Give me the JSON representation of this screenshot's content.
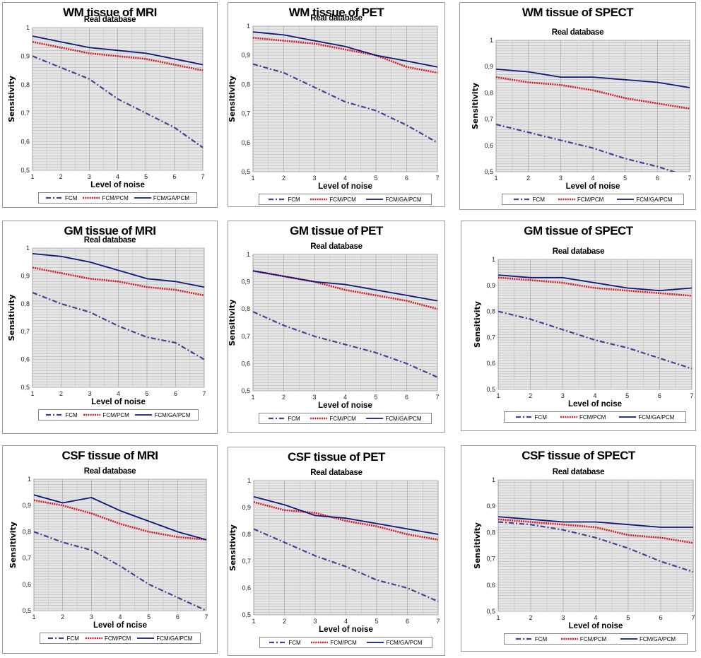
{
  "colors": {
    "FCM": "#4b3f8f",
    "FCM/PCM": "#d0202a",
    "FCM/GA/PCM": "#10167a",
    "plot_bg": "#e6e6e6",
    "grid": "#b5b5b5"
  },
  "chart_data": [
    {
      "type": "line",
      "title": "WM tissue of MRI",
      "subtitle": "Real database",
      "xlabel": "Level of noise",
      "ylabel": "Sensitivity",
      "x": [
        1,
        2,
        3,
        4,
        5,
        6,
        7
      ],
      "xticks": [
        "1",
        "2",
        "3",
        "4",
        "5",
        "6",
        "7"
      ],
      "yticks": [
        "0,5",
        "0,6",
        "0,7",
        "0,8",
        "0,9",
        "1"
      ],
      "ylim": [
        0.5,
        1
      ],
      "grid": true,
      "legend_position": "bottom",
      "series": [
        {
          "name": "FCM",
          "values": [
            0.9,
            0.86,
            0.82,
            0.75,
            0.7,
            0.65,
            0.58
          ]
        },
        {
          "name": "FCM/PCM",
          "values": [
            0.95,
            0.93,
            0.91,
            0.9,
            0.89,
            0.87,
            0.85
          ]
        },
        {
          "name": "FCM/GA/PCM",
          "values": [
            0.97,
            0.95,
            0.93,
            0.92,
            0.91,
            0.89,
            0.87
          ]
        }
      ]
    },
    {
      "type": "line",
      "title": "WM tissue of PET",
      "subtitle": "Real database",
      "xlabel": "Level of noise",
      "ylabel": "Sensitivity",
      "x": [
        1,
        2,
        3,
        4,
        5,
        6,
        7
      ],
      "xticks": [
        "1",
        "2",
        "3",
        "4",
        "5",
        "6",
        "7"
      ],
      "yticks": [
        "0,5",
        "0,6",
        "0,7",
        "0,8",
        "0,9",
        "1"
      ],
      "ylim": [
        0.5,
        1
      ],
      "grid": true,
      "legend_position": "bottom",
      "series": [
        {
          "name": "FCM",
          "values": [
            0.87,
            0.84,
            0.79,
            0.74,
            0.71,
            0.66,
            0.6
          ]
        },
        {
          "name": "FCM/PCM",
          "values": [
            0.96,
            0.95,
            0.94,
            0.92,
            0.9,
            0.86,
            0.84
          ]
        },
        {
          "name": "FCM/GA/PCM",
          "values": [
            0.98,
            0.97,
            0.95,
            0.93,
            0.9,
            0.88,
            0.86
          ]
        }
      ]
    },
    {
      "type": "line",
      "title": "WM tissue of SPECT",
      "subtitle": "Real database",
      "xlabel": "Level of noise",
      "ylabel": "Sensitivity",
      "x": [
        1,
        2,
        3,
        4,
        5,
        6,
        7
      ],
      "xticks": [
        "1",
        "2",
        "3",
        "4",
        "5",
        "6",
        "7"
      ],
      "yticks": [
        "0,5",
        "0,6",
        "0,7",
        "0,8",
        "0,9",
        "1"
      ],
      "ylim": [
        0.5,
        1
      ],
      "grid": true,
      "legend_position": "bottom",
      "series": [
        {
          "name": "FCM",
          "values": [
            0.68,
            0.65,
            0.62,
            0.59,
            0.55,
            0.52,
            0.48
          ]
        },
        {
          "name": "FCM/PCM",
          "values": [
            0.86,
            0.84,
            0.83,
            0.81,
            0.78,
            0.76,
            0.74
          ]
        },
        {
          "name": "FCM/GA/PCM",
          "values": [
            0.89,
            0.88,
            0.86,
            0.86,
            0.85,
            0.84,
            0.82
          ]
        }
      ]
    },
    {
      "type": "line",
      "title": "GM tissue of MRI",
      "subtitle": "Real database",
      "xlabel": "Level of noise",
      "ylabel": "Sensitivity",
      "x": [
        1,
        2,
        3,
        4,
        5,
        6,
        7
      ],
      "xticks": [
        "1",
        "2",
        "3",
        "4",
        "5",
        "6",
        "7"
      ],
      "yticks": [
        "0,5",
        "0,6",
        "0,7",
        "0,8",
        "0,9",
        "1"
      ],
      "ylim": [
        0.5,
        1
      ],
      "grid": true,
      "legend_position": "bottom",
      "series": [
        {
          "name": "FCM",
          "values": [
            0.84,
            0.8,
            0.77,
            0.72,
            0.68,
            0.66,
            0.6
          ]
        },
        {
          "name": "FCM/PCM",
          "values": [
            0.93,
            0.91,
            0.89,
            0.88,
            0.86,
            0.85,
            0.83
          ]
        },
        {
          "name": "FCM/GA/PCM",
          "values": [
            0.98,
            0.97,
            0.95,
            0.92,
            0.89,
            0.88,
            0.86
          ]
        }
      ]
    },
    {
      "type": "line",
      "title": "GM tissue of PET",
      "subtitle": "Real database",
      "xlabel": "Level of noise",
      "ylabel": "Sensitivity",
      "x": [
        1,
        2,
        3,
        4,
        5,
        6,
        7
      ],
      "xticks": [
        "1",
        "2",
        "3",
        "4",
        "5",
        "6",
        "7"
      ],
      "yticks": [
        "0,5",
        "0,6",
        "0,7",
        "0,8",
        "0,9",
        "1"
      ],
      "ylim": [
        0.5,
        1
      ],
      "grid": true,
      "legend_position": "bottom",
      "series": [
        {
          "name": "FCM",
          "values": [
            0.79,
            0.74,
            0.7,
            0.67,
            0.64,
            0.6,
            0.55
          ]
        },
        {
          "name": "FCM/PCM",
          "values": [
            0.94,
            0.92,
            0.9,
            0.87,
            0.85,
            0.83,
            0.8
          ]
        },
        {
          "name": "FCM/GA/PCM",
          "values": [
            0.94,
            0.92,
            0.9,
            0.89,
            0.87,
            0.85,
            0.83
          ]
        }
      ]
    },
    {
      "type": "line",
      "title": "GM tissue of SPECT",
      "subtitle": "Real database",
      "xlabel": "Level of ncise",
      "ylabel": "Sensitivity",
      "x": [
        1,
        2,
        3,
        4,
        5,
        6,
        7
      ],
      "xticks": [
        "1",
        "2",
        "3",
        "4",
        "5",
        "6",
        "7"
      ],
      "yticks": [
        "0,5",
        "0,6",
        "0,7",
        "0,8",
        "0,9",
        "1"
      ],
      "ylim": [
        0.5,
        1
      ],
      "grid": true,
      "legend_position": "bottom",
      "series": [
        {
          "name": "FCM",
          "values": [
            0.8,
            0.77,
            0.73,
            0.69,
            0.66,
            0.62,
            0.58
          ]
        },
        {
          "name": "FCM/PCM",
          "values": [
            0.93,
            0.92,
            0.91,
            0.89,
            0.88,
            0.87,
            0.86
          ]
        },
        {
          "name": "FCM/GA/PCM",
          "values": [
            0.94,
            0.93,
            0.93,
            0.91,
            0.89,
            0.88,
            0.89
          ]
        }
      ]
    },
    {
      "type": "line",
      "title": "CSF tissue of MRI",
      "subtitle": "Real database",
      "xlabel": "Level of ncise",
      "ylabel": "Sensitivity",
      "x": [
        1,
        2,
        3,
        4,
        5,
        6,
        7
      ],
      "xticks": [
        "1",
        "2",
        "3",
        "4",
        "5",
        "6",
        "7"
      ],
      "yticks": [
        "0,5",
        "0,6",
        "0,7",
        "0,8",
        "0,9",
        "1"
      ],
      "ylim": [
        0.5,
        1
      ],
      "grid": true,
      "legend_position": "bottom",
      "series": [
        {
          "name": "FCM",
          "values": [
            0.8,
            0.76,
            0.73,
            0.67,
            0.6,
            0.55,
            0.5
          ]
        },
        {
          "name": "FCM/PCM",
          "values": [
            0.92,
            0.9,
            0.87,
            0.83,
            0.8,
            0.78,
            0.77
          ]
        },
        {
          "name": "FCM/GA/PCM",
          "values": [
            0.94,
            0.91,
            0.93,
            0.88,
            0.84,
            0.8,
            0.77
          ]
        }
      ]
    },
    {
      "type": "line",
      "title": "CSF tissue of PET",
      "subtitle": "Real database",
      "xlabel": "Level of noise",
      "ylabel": "Sensitivity",
      "x": [
        1,
        2,
        3,
        4,
        5,
        6,
        7
      ],
      "xticks": [
        "1",
        "2",
        "3",
        "4",
        "5",
        "6",
        "7"
      ],
      "yticks": [
        "0,5",
        "0,6",
        "0,7",
        "0,8",
        "0,9",
        "1"
      ],
      "ylim": [
        0.5,
        1
      ],
      "grid": true,
      "legend_position": "bottom",
      "series": [
        {
          "name": "FCM",
          "values": [
            0.82,
            0.77,
            0.72,
            0.68,
            0.63,
            0.6,
            0.55
          ]
        },
        {
          "name": "FCM/PCM",
          "values": [
            0.92,
            0.89,
            0.88,
            0.85,
            0.83,
            0.8,
            0.78
          ]
        },
        {
          "name": "FCM/GA/PCM",
          "values": [
            0.94,
            0.91,
            0.87,
            0.86,
            0.84,
            0.82,
            0.8
          ]
        }
      ]
    },
    {
      "type": "line",
      "title": "CSF tissue of SPECT",
      "subtitle": "Real database",
      "xlabel": "Level of noise",
      "ylabel": "Sensitivity",
      "x": [
        1,
        2,
        3,
        4,
        5,
        6,
        7
      ],
      "xticks": [
        "1",
        "2",
        "3",
        "4",
        "5",
        "6",
        "7"
      ],
      "yticks": [
        "0,5",
        "0,6",
        "0,7",
        "0,8",
        "0,9",
        "1"
      ],
      "ylim": [
        0.5,
        1
      ],
      "grid": true,
      "legend_position": "bottom",
      "series": [
        {
          "name": "FCM",
          "values": [
            0.84,
            0.83,
            0.81,
            0.78,
            0.74,
            0.69,
            0.65
          ]
        },
        {
          "name": "FCM/PCM",
          "values": [
            0.85,
            0.84,
            0.83,
            0.82,
            0.79,
            0.78,
            0.76
          ]
        },
        {
          "name": "FCM/GA/PCM",
          "values": [
            0.86,
            0.85,
            0.84,
            0.84,
            0.83,
            0.82,
            0.82
          ]
        }
      ]
    }
  ]
}
